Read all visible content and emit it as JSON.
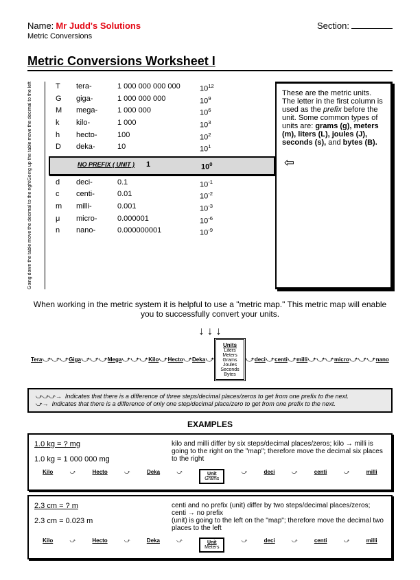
{
  "header": {
    "name_label": "Name:",
    "name_value": "Mr Judd's Solutions",
    "section_label": "Section:",
    "subheader": "Metric Conversions"
  },
  "title": "Metric Conversions Worksheet I",
  "vert_labels": {
    "up": "Going up the table move the decimal to the left",
    "down": "Going down the table move the decimal to the right"
  },
  "prefixes_up": [
    {
      "sym": "T",
      "name": "tera-",
      "val": "1 000 000 000 000",
      "exp": "12"
    },
    {
      "sym": "G",
      "name": "giga-",
      "val": "1 000 000 000",
      "exp": "9"
    },
    {
      "sym": "M",
      "name": "mega-",
      "val": "1 000 000",
      "exp": "6"
    },
    {
      "sym": "k",
      "name": "kilo-",
      "val": "1 000",
      "exp": "3"
    },
    {
      "sym": "h",
      "name": "hecto-",
      "val": "100",
      "exp": "2"
    },
    {
      "sym": "D",
      "name": "deka-",
      "val": "10",
      "exp": "1"
    }
  ],
  "no_prefix": {
    "label": "NO PREFIX ( UNIT )",
    "val": "1",
    "exp": "0"
  },
  "prefixes_down": [
    {
      "sym": "d",
      "name": "deci-",
      "val": "0.1",
      "exp": "-1"
    },
    {
      "sym": "c",
      "name": "centi-",
      "val": "0.01",
      "exp": "-2"
    },
    {
      "sym": "m",
      "name": "milli-",
      "val": "0.001",
      "exp": "-3"
    },
    {
      "sym": "μ",
      "name": "micro-",
      "val": "0.000001",
      "exp": "-6"
    },
    {
      "sym": "n",
      "name": "nano-",
      "val": "0.000000001",
      "exp": "-9"
    }
  ],
  "info_box": "These are the metric units. The letter in the first column is used as the <i>prefix</i> before the unit. Some common types of units are: <b>grams (g), meters (m), liters (L), joules (J), seconds (s),</b> and <b>bytes (B).</b>",
  "intro": "When working in the metric system it is helpful to use a \"metric map.\" This metric map will enable you to successfully convert your units.",
  "map_nodes_left": [
    "Tera",
    "Giga",
    "Mega",
    "Kilo",
    "Hecto",
    "Deka"
  ],
  "map_nodes_right": [
    "deci",
    "centi",
    "milli",
    "micro",
    "nano"
  ],
  "units_box": {
    "title": "Units",
    "items": [
      "Liters",
      "Meters",
      "Grams",
      "Joules",
      "Seconds",
      "Bytes"
    ]
  },
  "legend": {
    "line1": "Indicates that there is a difference of three steps/decimal places/zeros to get from one prefix to the next.",
    "line2": "Indicates that there is a difference of only one step/decimal place/zero to get from one prefix to the next."
  },
  "examples_title": "EXAMPLES",
  "example1": {
    "q": "1.0 kg = ? mg",
    "a": "1.0 kg = 1 000 000 mg",
    "explain": "kilo and milli differ by six steps/decimal places/zeros; kilo → milli is going to the right on the \"map\"; therefore move the decimal six places to the right",
    "nodes": [
      "Kilo",
      "Hecto",
      "Deka"
    ],
    "nodes_right": [
      "deci",
      "centi",
      "milli"
    ],
    "unit": "Grams"
  },
  "example2": {
    "q": "2.3 cm = ? m",
    "a": "2.3 cm = 0.023 m",
    "explain1": "centi and no prefix (unit) differ by two steps/decimal places/zeros; centi → no prefix",
    "explain2": "(unit) is going to the left on the \"map\"; therefore move the decimal two places to the left",
    "nodes": [
      "Kilo",
      "Hecto",
      "Deka"
    ],
    "nodes_right": [
      "deci",
      "centi",
      "milli"
    ],
    "unit": "Meters"
  }
}
